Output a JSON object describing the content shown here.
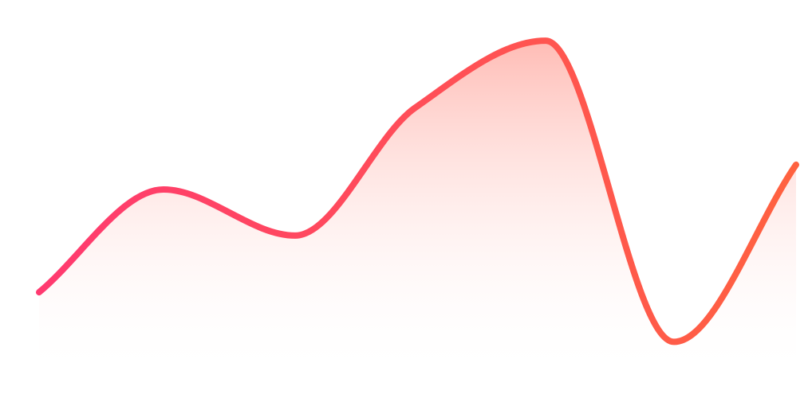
{
  "chart_data": {
    "type": "area",
    "smooth": true,
    "title": "",
    "xlabel": "",
    "ylabel": "",
    "grid": false,
    "legend": "none",
    "x": [
      0,
      1,
      2,
      3,
      4,
      5,
      6,
      7
    ],
    "ylim": [
      0,
      100
    ],
    "series": [
      {
        "values": [
          22,
          51,
          38,
          74,
          93,
          8,
          58,
          58
        ]
      }
    ]
  },
  "colors": {
    "stroke_start": "#FF3A70",
    "stroke_end": "#FF6240",
    "fill_top": "#FFB0A8",
    "fill_bottom": "#FFFFFF",
    "background": "#FFFFFF"
  }
}
